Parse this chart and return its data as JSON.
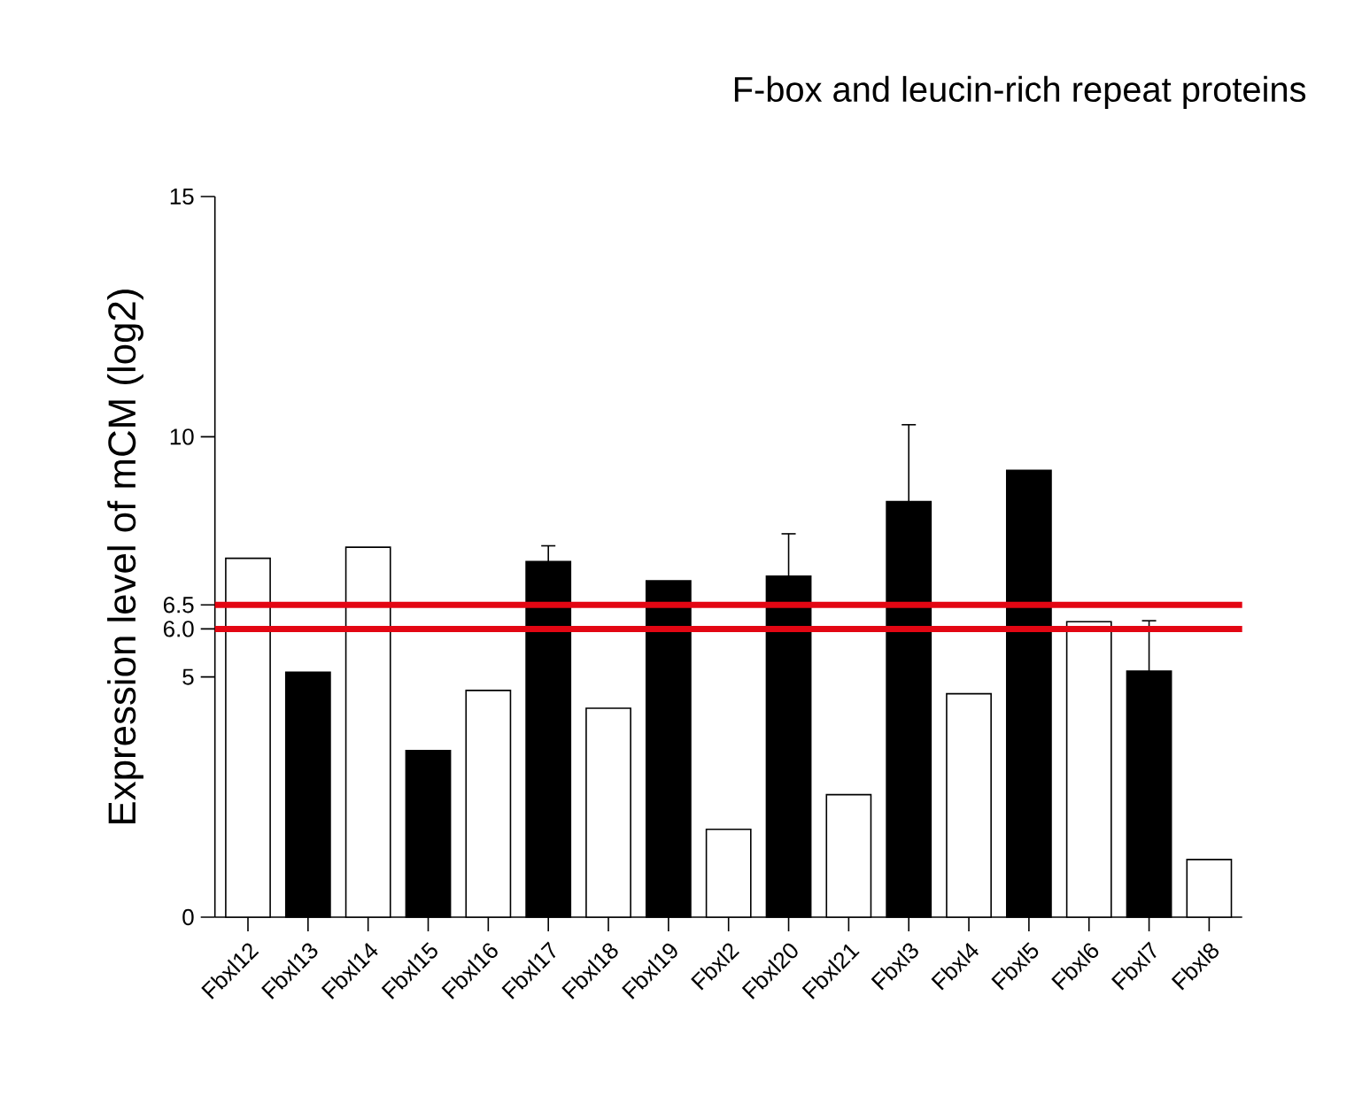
{
  "chart_data": {
    "type": "bar",
    "title": "F-box and leucin-rich repeat proteins",
    "ylabel": "Expression level of mCM (log2)",
    "categories": [
      "Fbxl12",
      "Fbxl13",
      "Fbxl14",
      "Fbxl15",
      "Fbxl16",
      "Fbxl17",
      "Fbxl18",
      "Fbxl19",
      "Fbxl2",
      "Fbxl20",
      "Fbxl21",
      "Fbxl3",
      "Fbxl4",
      "Fbxl5",
      "Fbxl6",
      "Fbxl7",
      "Fbxl8"
    ],
    "values": [
      7.47,
      5.1,
      7.7,
      3.47,
      4.72,
      7.4,
      4.35,
      7.0,
      1.83,
      7.1,
      2.55,
      8.65,
      4.65,
      9.3,
      6.15,
      5.12,
      1.2
    ],
    "errors": [
      null,
      null,
      null,
      null,
      null,
      0.33,
      null,
      null,
      null,
      0.88,
      null,
      1.6,
      null,
      null,
      null,
      1.05,
      null
    ],
    "colors": [
      "#ffffff",
      "#000000",
      "#ffffff",
      "#000000",
      "#ffffff",
      "#000000",
      "#ffffff",
      "#000000",
      "#ffffff",
      "#000000",
      "#ffffff",
      "#000000",
      "#ffffff",
      "#000000",
      "#ffffff",
      "#000000",
      "#ffffff"
    ],
    "ylim": [
      0,
      15
    ],
    "yticks": [
      0,
      5,
      {
        "value": 6,
        "label": "6.0"
      },
      6.5,
      10,
      15
    ],
    "ref_lines": [
      {
        "axis": "y",
        "value": 6.5,
        "color": "#e30613"
      },
      {
        "axis": "y",
        "value": 6,
        "color": "#e30613"
      }
    ],
    "grid": false
  }
}
